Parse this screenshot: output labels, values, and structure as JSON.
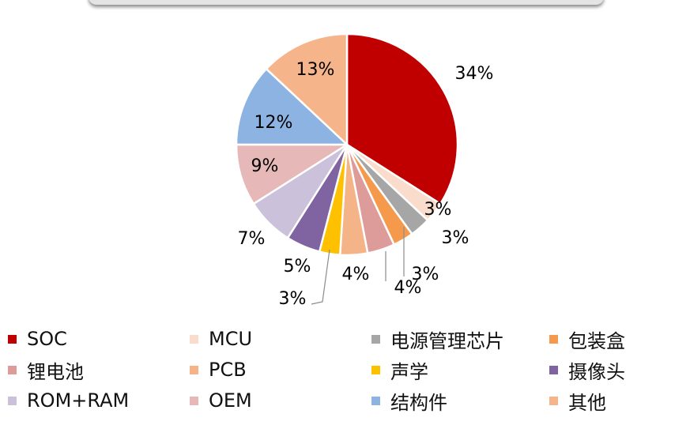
{
  "chart_data": {
    "type": "pie",
    "slices": [
      {
        "name": "SOC",
        "value": 34,
        "label": "34%",
        "color": "#C00000"
      },
      {
        "name": "MCU",
        "value": 3,
        "label": "3%",
        "color": "#F9DCCB"
      },
      {
        "name": "电源管理芯片",
        "value": 3,
        "label": "3%",
        "color": "#A6A6A6"
      },
      {
        "name": "包装盒",
        "value": 3,
        "label": "3%",
        "color": "#F59A4C"
      },
      {
        "name": "锂电池",
        "value": 4,
        "label": "4%",
        "color": "#DD9C9A"
      },
      {
        "name": "PCB",
        "value": 4,
        "label": "4%",
        "color": "#F5B488"
      },
      {
        "name": "声学",
        "value": 3,
        "label": "3%",
        "color": "#FFC000"
      },
      {
        "name": "摄像头",
        "value": 5,
        "label": "5%",
        "color": "#8064A2"
      },
      {
        "name": "ROM+RAM",
        "value": 7,
        "label": "7%",
        "color": "#CCC1DA"
      },
      {
        "name": "OEM",
        "value": 9,
        "label": "9%",
        "color": "#E6B9B8"
      },
      {
        "name": "结构件",
        "value": 12,
        "label": "12%",
        "color": "#8DB3E2"
      },
      {
        "name": "其他",
        "value": 13,
        "label": "13%",
        "color": "#F5B48A"
      }
    ],
    "start_angle": "12 o'clock",
    "direction": "clockwise",
    "legend_position": "bottom"
  }
}
